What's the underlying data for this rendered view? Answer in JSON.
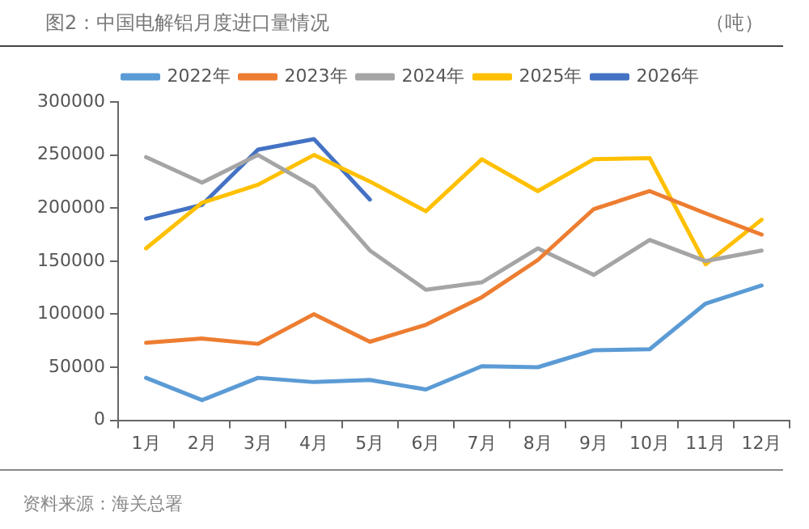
{
  "chart_data": {
    "type": "line",
    "title": "图2：中国电解铝月度进口量情况",
    "ylabel": "（吨）",
    "annotations": [
      "资料来源：海关总署"
    ],
    "categories": [
      "1月",
      "2月",
      "3月",
      "4月",
      "5月",
      "6月",
      "7月",
      "8月",
      "9月",
      "10月",
      "11月",
      "12月"
    ],
    "series": [
      {
        "name": "2022年",
        "color": "#5b9bd5",
        "values": [
          40000,
          19000,
          40000,
          36000,
          38000,
          29000,
          51000,
          50000,
          66000,
          67000,
          110000,
          127000
        ]
      },
      {
        "name": "2023年",
        "color": "#ed7d31",
        "values": [
          73000,
          77000,
          72000,
          100000,
          74000,
          90000,
          116000,
          151000,
          199000,
          216000,
          195000,
          175000
        ]
      },
      {
        "name": "2024年",
        "color": "#a5a5a5",
        "values": [
          248000,
          224000,
          250000,
          220000,
          160000,
          123000,
          130000,
          162000,
          137000,
          170000,
          150000,
          160000
        ]
      },
      {
        "name": "2025年",
        "color": "#ffc000",
        "values": [
          162000,
          205000,
          222000,
          250000,
          225000,
          197000,
          246000,
          216000,
          246000,
          247000,
          147000,
          189000
        ]
      },
      {
        "name": "2026年",
        "color": "#4472c4",
        "values": [
          190000,
          203000,
          255000,
          265000,
          208000,
          null,
          null,
          null,
          null,
          null,
          null,
          null
        ]
      }
    ],
    "ylim": [
      0,
      300000
    ],
    "yticks": [
      0,
      50000,
      100000,
      150000,
      200000,
      250000,
      300000
    ],
    "grid": false,
    "legend": "top",
    "marker": "none",
    "line_style": "solid"
  }
}
